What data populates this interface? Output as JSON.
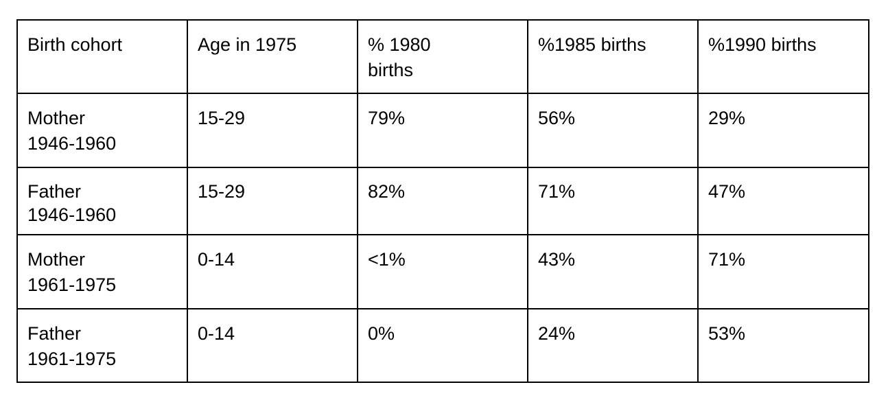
{
  "table": {
    "headers": [
      "Birth cohort",
      "Age in 1975",
      "% 1980 births",
      "%1985 births",
      "%1990 births"
    ],
    "rows": [
      {
        "cohort": [
          "Mother",
          "1946-1960"
        ],
        "age": "15-29",
        "p1980": "79%",
        "p1985": "56%",
        "p1990": "29%"
      },
      {
        "cohort": [
          "Father",
          "1946-1960"
        ],
        "age": "15-29",
        "p1980": "82%",
        "p1985": "71%",
        "p1990": "47%"
      },
      {
        "cohort": [
          "Mother",
          "1961-1975"
        ],
        "age": "0-14",
        "p1980": "<1%",
        "p1985": "43%",
        "p1990": "71%"
      },
      {
        "cohort": [
          "Father",
          "1961-1975"
        ],
        "age": "0-14",
        "p1980": "0%",
        "p1985": "24%",
        "p1990": "53%"
      }
    ]
  },
  "header_1980_lines": [
    "% 1980",
    "births"
  ]
}
